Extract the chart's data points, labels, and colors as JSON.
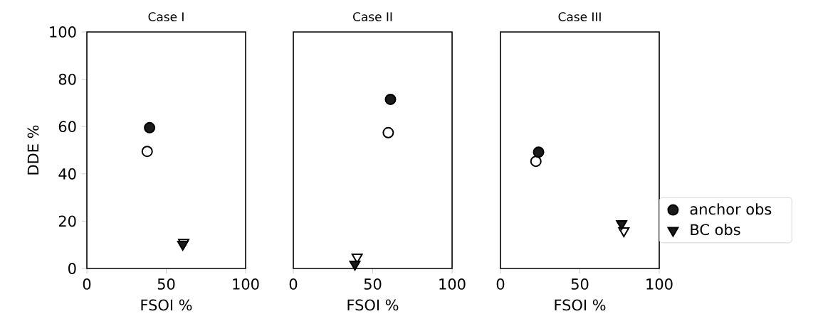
{
  "chart_data": [
    {
      "type": "scatter",
      "title": "Case I",
      "xlabel": "FSOI %",
      "ylabel": "DDE %",
      "xlim": [
        0,
        100
      ],
      "ylim": [
        0,
        100
      ],
      "xticks": [
        0,
        50,
        100
      ],
      "yticks": [
        0,
        20,
        40,
        60,
        80,
        100
      ],
      "grid": false,
      "series": [
        {
          "color": "#ffffff",
          "marker": "circle",
          "x": [
            38
          ],
          "values": [
            49.5
          ]
        },
        {
          "color": "#1a1a1a",
          "marker": "circle",
          "x": [
            39.5
          ],
          "values": [
            59.5
          ]
        },
        {
          "color": "#ffffff",
          "marker": "triangle",
          "x": [
            61
          ],
          "values": [
            11
          ]
        },
        {
          "color": "#1a1a1a",
          "marker": "triangle",
          "x": [
            60.4
          ],
          "values": [
            10.2
          ]
        }
      ]
    },
    {
      "type": "scatter",
      "title": "Case II",
      "xlabel": "FSOI %",
      "xlim": [
        0,
        100
      ],
      "ylim": [
        0,
        100
      ],
      "xticks": [
        0,
        50,
        100
      ],
      "yticks": [
        0,
        20,
        40,
        60,
        80,
        100
      ],
      "tick_labels": "x",
      "grid": false,
      "series": [
        {
          "color": "#ffffff",
          "marker": "circle",
          "x": [
            59.8
          ],
          "values": [
            57.4
          ]
        },
        {
          "color": "#1a1a1a",
          "marker": "circle",
          "x": [
            61.2
          ],
          "values": [
            71.5
          ]
        },
        {
          "color": "#ffffff",
          "marker": "triangle",
          "x": [
            40.2
          ],
          "values": [
            4.8
          ]
        },
        {
          "color": "#1a1a1a",
          "marker": "triangle",
          "x": [
            38.8
          ],
          "values": [
            1.8
          ]
        }
      ]
    },
    {
      "type": "scatter",
      "title": "Case III",
      "xlabel": "FSOI %",
      "xlim": [
        0,
        100
      ],
      "ylim": [
        0,
        100
      ],
      "xticks": [
        0,
        50,
        100
      ],
      "yticks": [
        0,
        20,
        40,
        60,
        80,
        100
      ],
      "tick_labels": "x",
      "grid": false,
      "legend": "right",
      "series": [
        {
          "color": "#ffffff",
          "marker": "circle",
          "x": [
            22.3
          ],
          "values": [
            45.3
          ]
        },
        {
          "name": "anchor obs",
          "color": "#1a1a1a",
          "marker": "circle",
          "x": [
            24
          ],
          "values": [
            49.2
          ]
        },
        {
          "color": "#ffffff",
          "marker": "triangle",
          "x": [
            77.7
          ],
          "values": [
            15.9
          ]
        },
        {
          "name": "BC obs",
          "color": "#1a1a1a",
          "marker": "triangle",
          "x": [
            76.3
          ],
          "values": [
            18.9
          ]
        }
      ]
    }
  ]
}
